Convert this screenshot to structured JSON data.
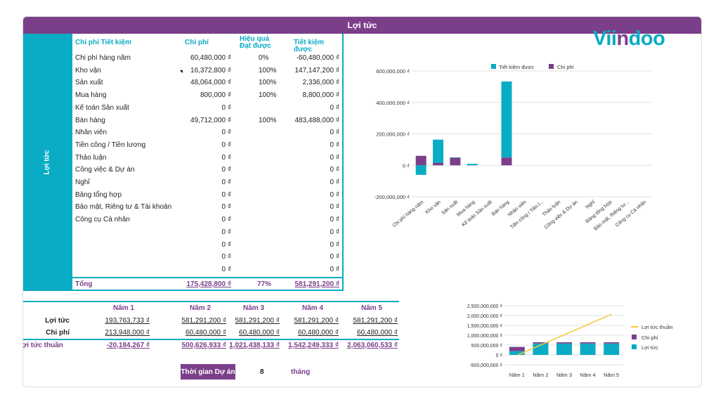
{
  "header": {
    "title": "Lợi tức"
  },
  "side_label": "Lợi tức",
  "savings_table": {
    "headers": {
      "item": "Chi phí Tiết kiệm",
      "cost": "Chi phí",
      "effect_line1": "Hiệu quả",
      "effect_line2": "Đạt được",
      "saved": "Tiết kiệm được"
    },
    "rows": [
      {
        "item": "Chi phí hàng năm",
        "cost": "60,480,000 ₫",
        "effect": "0%",
        "saved": "-60,480,000 ₫"
      },
      {
        "item": "Kho vận",
        "cost": "16,372,800 ₫",
        "effect": "100%",
        "saved": "147,147,200 ₫"
      },
      {
        "item": "Sản xuất",
        "cost": "48,064,000 ₫",
        "effect": "100%",
        "saved": "2,336,000 ₫"
      },
      {
        "item": "Mua hàng",
        "cost": "800,000 ₫",
        "effect": "100%",
        "saved": "8,800,000 ₫"
      },
      {
        "item": "Kế toán Sản xuất",
        "cost": "0 ₫",
        "effect": "",
        "saved": "0 ₫"
      },
      {
        "item": "Bán hàng",
        "cost": "49,712,000 ₫",
        "effect": "100%",
        "saved": "483,488,000 ₫"
      },
      {
        "item": "Nhân viên",
        "cost": "0 ₫",
        "effect": "",
        "saved": "0 ₫"
      },
      {
        "item": "Tiền công / Tiền lương",
        "cost": "0 ₫",
        "effect": "",
        "saved": "0 ₫"
      },
      {
        "item": "Thảo luận",
        "cost": "0 ₫",
        "effect": "",
        "saved": "0 ₫"
      },
      {
        "item": "Công việc & Dự án",
        "cost": "0 ₫",
        "effect": "",
        "saved": "0 ₫"
      },
      {
        "item": "Nghỉ",
        "cost": "0 ₫",
        "effect": "",
        "saved": "0 ₫"
      },
      {
        "item": "Bảng tổng hợp",
        "cost": "0 ₫",
        "effect": "",
        "saved": "0 ₫"
      },
      {
        "item": "Bảo mật, Riêng tư & Tài khoản",
        "cost": "0 ₫",
        "effect": "",
        "saved": "0 ₫"
      },
      {
        "item": "Công cụ Cá nhân",
        "cost": "0 ₫",
        "effect": "",
        "saved": "0 ₫"
      },
      {
        "item": "",
        "cost": "0 ₫",
        "effect": "",
        "saved": "0 ₫"
      },
      {
        "item": "",
        "cost": "0 ₫",
        "effect": "",
        "saved": "0 ₫"
      },
      {
        "item": "",
        "cost": "0 ₫",
        "effect": "",
        "saved": "0 ₫"
      },
      {
        "item": "",
        "cost": "0 ₫",
        "effect": "",
        "saved": "0 ₫"
      }
    ],
    "total": {
      "label": "Tổng",
      "cost": "175,428,800 ₫",
      "effect": "77%",
      "saved": "581,291,200 ₫"
    }
  },
  "logo": {
    "part1": "Vii",
    "part2": "n",
    "part3": "doo"
  },
  "years_table": {
    "headers": [
      "Năm 1",
      "Năm 2",
      "Năm 3",
      "Năm 4",
      "Năm 5"
    ],
    "rows": [
      {
        "label": "Lợi tức",
        "values": [
          "193,763,733 ₫",
          "581,291,200 ₫",
          "581,291,200 ₫",
          "581,291,200 ₫",
          "581,291,200 ₫"
        ]
      },
      {
        "label": "Chi phí",
        "values": [
          "213,948,000 ₫",
          "60,480,000 ₫",
          "60,480,000 ₫",
          "60,480,000 ₫",
          "60,480,000 ₫"
        ]
      },
      {
        "label": "Lợi tức thuần",
        "values": [
          "-20,184,267 ₫",
          "500,626,933 ₫",
          "1,021,438,133 ₫",
          "1,542,249,333 ₫",
          "2,063,060,533 ₫"
        ]
      }
    ],
    "project_label": "Thời gian Dự án",
    "project_value": "8",
    "project_unit": "tháng"
  },
  "colors": {
    "teal": "#0aacc5",
    "purple": "#7b3f8a",
    "yellow": "#f5c93b"
  },
  "chart_data": [
    {
      "type": "bar",
      "title": "",
      "stacked": true,
      "categories": [
        "Chi phí hàng năm",
        "Kho vận",
        "Sản xuất",
        "Mua hàng",
        "Kế toán Sản xuất",
        "Bán hàng",
        "Nhân viên",
        "Tiền công / Tiền l...",
        "Thảo luận",
        "Công việc & Dự án",
        "Nghỉ",
        "Bảng tổng hợp",
        "Bảo mật, Riêng tư...",
        "Công cụ Cá nhân"
      ],
      "series": [
        {
          "name": "Tiết kiệm được",
          "values": [
            -60480000,
            147147200,
            2336000,
            8800000,
            0,
            483488000,
            0,
            0,
            0,
            0,
            0,
            0,
            0,
            0
          ]
        },
        {
          "name": "Chi phí",
          "values": [
            60480000,
            16372800,
            48064000,
            800000,
            0,
            49712000,
            0,
            0,
            0,
            0,
            0,
            0,
            0,
            0
          ]
        }
      ],
      "yticks": [
        "600,000,000 ₫",
        "400,000,000 ₫",
        "200,000,000 ₫",
        "0 ₫",
        "-200,000,000 ₫"
      ],
      "ylim": [
        -200000000,
        600000000
      ],
      "legend": "top"
    },
    {
      "type": "bar",
      "title": "",
      "categories": [
        "Năm 1",
        "Năm 2",
        "Năm 3",
        "Năm 4",
        "Năm 5"
      ],
      "series": [
        {
          "name": "Lợi tức thuần",
          "kind": "line",
          "values": [
            -20184267,
            500626933,
            1021438133,
            1542249333,
            2063060533
          ]
        },
        {
          "name": "Chi phí",
          "values": [
            213948000,
            60480000,
            60480000,
            60480000,
            60480000
          ]
        },
        {
          "name": "Lợi tức",
          "values": [
            193763733,
            581291200,
            581291200,
            581291200,
            581291200
          ]
        }
      ],
      "yticks": [
        "2,500,000,000 ₫",
        "2,000,000,000 ₫",
        "1,500,000,000 ₫",
        "1,000,000,000 ₫",
        "500,000,000 ₫",
        "0 ₫",
        "-500,000,000 ₫"
      ],
      "ylim": [
        -500000000,
        2500000000
      ],
      "legend": "right"
    }
  ]
}
